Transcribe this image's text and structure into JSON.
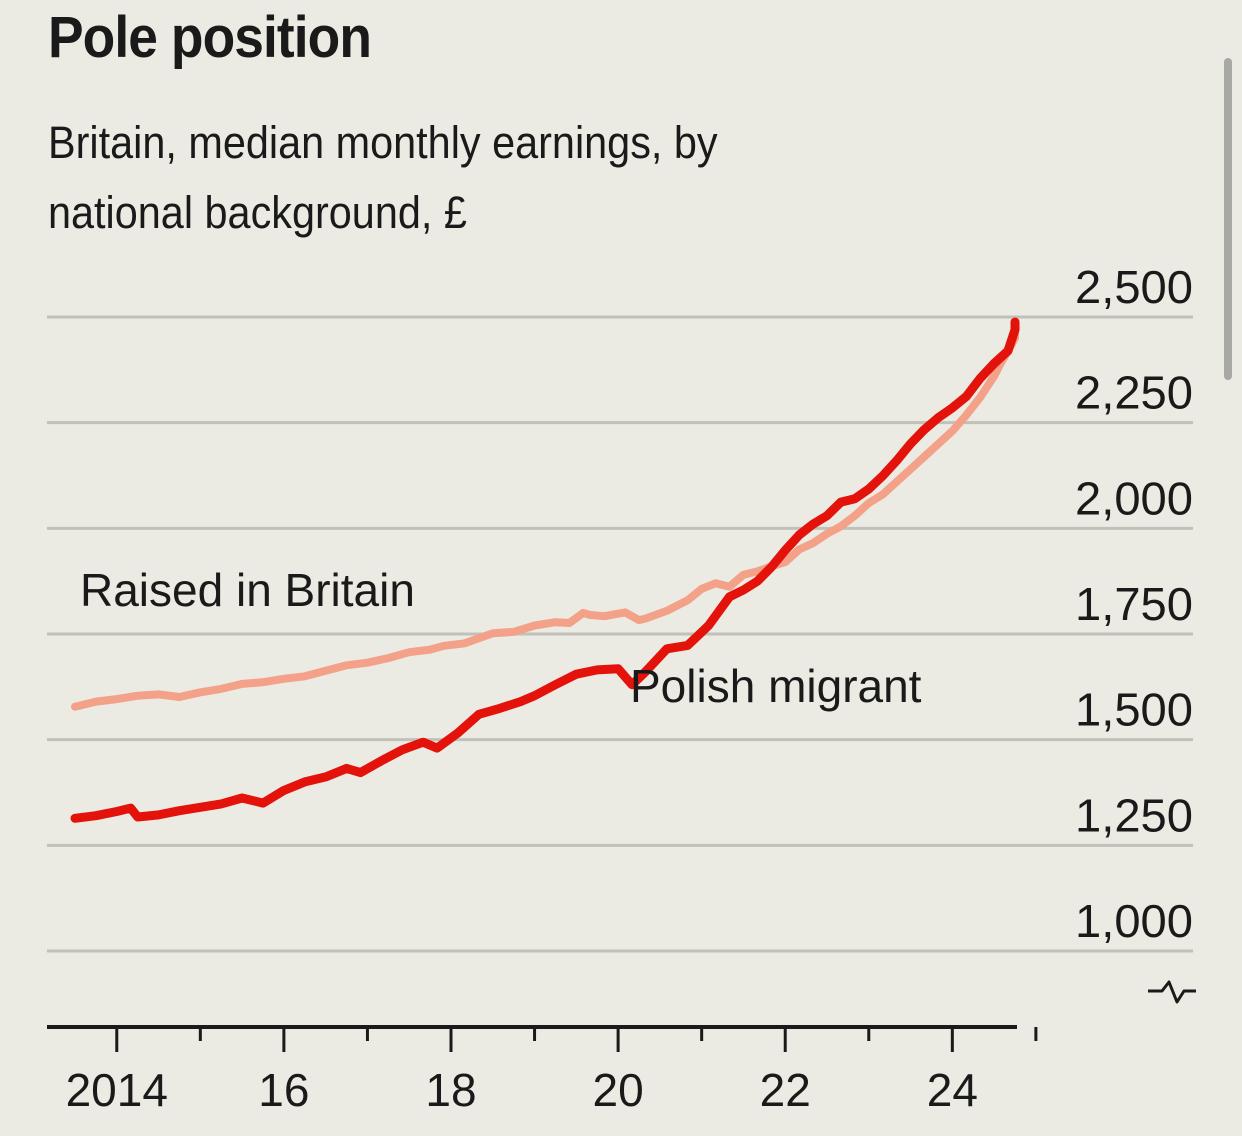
{
  "title": "Pole position",
  "subtitle": "Britain, median monthly earnings, by national background, £",
  "axis_break_symbol": "-^-",
  "chart_data": {
    "type": "line",
    "title": "Pole position",
    "subtitle": "Britain, median monthly earnings, by national background, £",
    "xlabel": "",
    "ylabel": "",
    "ylim": [
      1000,
      2500
    ],
    "y_axis_broken": true,
    "yticks": [
      1000,
      1250,
      1500,
      1750,
      2000,
      2250,
      2500
    ],
    "ytick_labels": [
      "1,000",
      "1,250",
      "1,500",
      "1,750",
      "2,000",
      "2,250",
      "2,500"
    ],
    "y_axis_side": "right",
    "xlim": [
      "2013-07",
      "2024-10"
    ],
    "xtick_years": [
      "2014",
      "2015",
      "2016",
      "2017",
      "2018",
      "2019",
      "2020",
      "2021",
      "2022",
      "2023",
      "2024",
      "2025"
    ],
    "xtick_labels": [
      "2014",
      "16",
      "18",
      "20",
      "22",
      "24"
    ],
    "xtick_label_years": [
      "2014",
      "2016",
      "2018",
      "2020",
      "2022",
      "2024"
    ],
    "grid": true,
    "legend": "inline labels",
    "series": [
      {
        "name": "Raised in Britain",
        "color": "#f3a188",
        "points": [
          [
            "2013-07",
            1578
          ],
          [
            "2013-10",
            1590
          ],
          [
            "2014-01",
            1596
          ],
          [
            "2014-04",
            1604
          ],
          [
            "2014-07",
            1607
          ],
          [
            "2014-10",
            1601
          ],
          [
            "2015-01",
            1612
          ],
          [
            "2015-04",
            1620
          ],
          [
            "2015-07",
            1632
          ],
          [
            "2015-10",
            1636
          ],
          [
            "2016-01",
            1644
          ],
          [
            "2016-04",
            1650
          ],
          [
            "2016-07",
            1663
          ],
          [
            "2016-10",
            1676
          ],
          [
            "2017-01",
            1682
          ],
          [
            "2017-04",
            1693
          ],
          [
            "2017-07",
            1707
          ],
          [
            "2017-10",
            1713
          ],
          [
            "2017-12",
            1722
          ],
          [
            "2018-03",
            1728
          ],
          [
            "2018-07",
            1752
          ],
          [
            "2018-10",
            1755
          ],
          [
            "2019-01",
            1770
          ],
          [
            "2019-04",
            1778
          ],
          [
            "2019-06",
            1776
          ],
          [
            "2019-08",
            1800
          ],
          [
            "2019-09",
            1795
          ],
          [
            "2019-11",
            1792
          ],
          [
            "2020-02",
            1801
          ],
          [
            "2020-04",
            1783
          ],
          [
            "2020-05",
            1787
          ],
          [
            "2020-08",
            1805
          ],
          [
            "2020-11",
            1830
          ],
          [
            "2021-01",
            1857
          ],
          [
            "2021-03",
            1870
          ],
          [
            "2021-05",
            1862
          ],
          [
            "2021-07",
            1890
          ],
          [
            "2021-09",
            1898
          ],
          [
            "2021-11",
            1910
          ],
          [
            "2022-01",
            1920
          ],
          [
            "2022-03",
            1950
          ],
          [
            "2022-05",
            1965
          ],
          [
            "2022-07",
            1987
          ],
          [
            "2022-09",
            2005
          ],
          [
            "2022-11",
            2030
          ],
          [
            "2023-01",
            2060
          ],
          [
            "2023-03",
            2080
          ],
          [
            "2023-05",
            2110
          ],
          [
            "2023-07",
            2140
          ],
          [
            "2023-09",
            2170
          ],
          [
            "2023-11",
            2200
          ],
          [
            "2024-01",
            2230
          ],
          [
            "2024-03",
            2268
          ],
          [
            "2024-05",
            2310
          ],
          [
            "2024-07",
            2360
          ],
          [
            "2024-08",
            2392
          ],
          [
            "2024-09",
            2420
          ],
          [
            "2024-10",
            2450
          ],
          [
            "2024-10",
            2490
          ]
        ]
      },
      {
        "name": "Polish migrant",
        "color": "#e3120b",
        "points": [
          [
            "2013-07",
            1314
          ],
          [
            "2013-10",
            1320
          ],
          [
            "2014-01",
            1330
          ],
          [
            "2014-03",
            1338
          ],
          [
            "2014-04",
            1317
          ],
          [
            "2014-07",
            1322
          ],
          [
            "2014-10",
            1332
          ],
          [
            "2015-01",
            1340
          ],
          [
            "2015-04",
            1348
          ],
          [
            "2015-07",
            1362
          ],
          [
            "2015-10",
            1350
          ],
          [
            "2016-01",
            1380
          ],
          [
            "2016-04",
            1400
          ],
          [
            "2016-07",
            1412
          ],
          [
            "2016-10",
            1432
          ],
          [
            "2016-12",
            1422
          ],
          [
            "2017-03",
            1450
          ],
          [
            "2017-06",
            1476
          ],
          [
            "2017-09",
            1494
          ],
          [
            "2017-11",
            1480
          ],
          [
            "2018-02",
            1516
          ],
          [
            "2018-05",
            1560
          ],
          [
            "2018-08",
            1574
          ],
          [
            "2018-11",
            1590
          ],
          [
            "2019-01",
            1604
          ],
          [
            "2019-04",
            1630
          ],
          [
            "2019-07",
            1655
          ],
          [
            "2019-10",
            1665
          ],
          [
            "2020-01",
            1668
          ],
          [
            "2020-03",
            1630
          ],
          [
            "2020-05",
            1662
          ],
          [
            "2020-08",
            1715
          ],
          [
            "2020-11",
            1723
          ],
          [
            "2021-02",
            1770
          ],
          [
            "2021-05",
            1838
          ],
          [
            "2021-07",
            1854
          ],
          [
            "2021-09",
            1875
          ],
          [
            "2021-11",
            1908
          ],
          [
            "2022-01",
            1948
          ],
          [
            "2022-03",
            1984
          ],
          [
            "2022-05",
            2010
          ],
          [
            "2022-07",
            2030
          ],
          [
            "2022-09",
            2062
          ],
          [
            "2022-11",
            2070
          ],
          [
            "2023-01",
            2093
          ],
          [
            "2023-03",
            2124
          ],
          [
            "2023-05",
            2160
          ],
          [
            "2023-07",
            2200
          ],
          [
            "2023-09",
            2234
          ],
          [
            "2023-11",
            2262
          ],
          [
            "2024-01",
            2285
          ],
          [
            "2024-03",
            2312
          ],
          [
            "2024-05",
            2355
          ],
          [
            "2024-07",
            2390
          ],
          [
            "2024-09",
            2420
          ],
          [
            "2024-10",
            2470
          ],
          [
            "2024-10",
            2488
          ]
        ]
      }
    ],
    "annotations": [
      {
        "text": "Raised in Britain",
        "series": "Raised in Britain"
      },
      {
        "text": "Polish migrant",
        "series": "Polish migrant"
      }
    ]
  }
}
